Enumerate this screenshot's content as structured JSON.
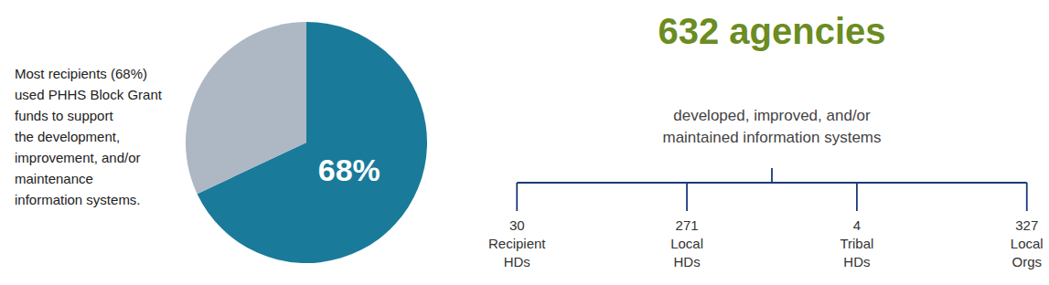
{
  "chart_data": {
    "type": "pie",
    "values": [
      68,
      32
    ],
    "colors": [
      "#1a7a9a",
      "#adb8c4"
    ],
    "data_labels": true,
    "value_labels": [
      "68%",
      null
    ],
    "annotations": [
      "Most recipients (68%)",
      "used PHHS Block Grant",
      "funds to support",
      "the development,",
      "improvement, and/or",
      "maintenance",
      "information systems."
    ],
    "title": "632 agencies",
    "subtitle": [
      "developed, improved, and/or",
      "maintained information systems"
    ],
    "breakdown": {
      "categories": [
        "Recipient\nHDs",
        "Local\nHDs",
        "Tribal\nHDs",
        "Local\nOrgs"
      ],
      "values": [
        30,
        271,
        4,
        327
      ]
    }
  }
}
